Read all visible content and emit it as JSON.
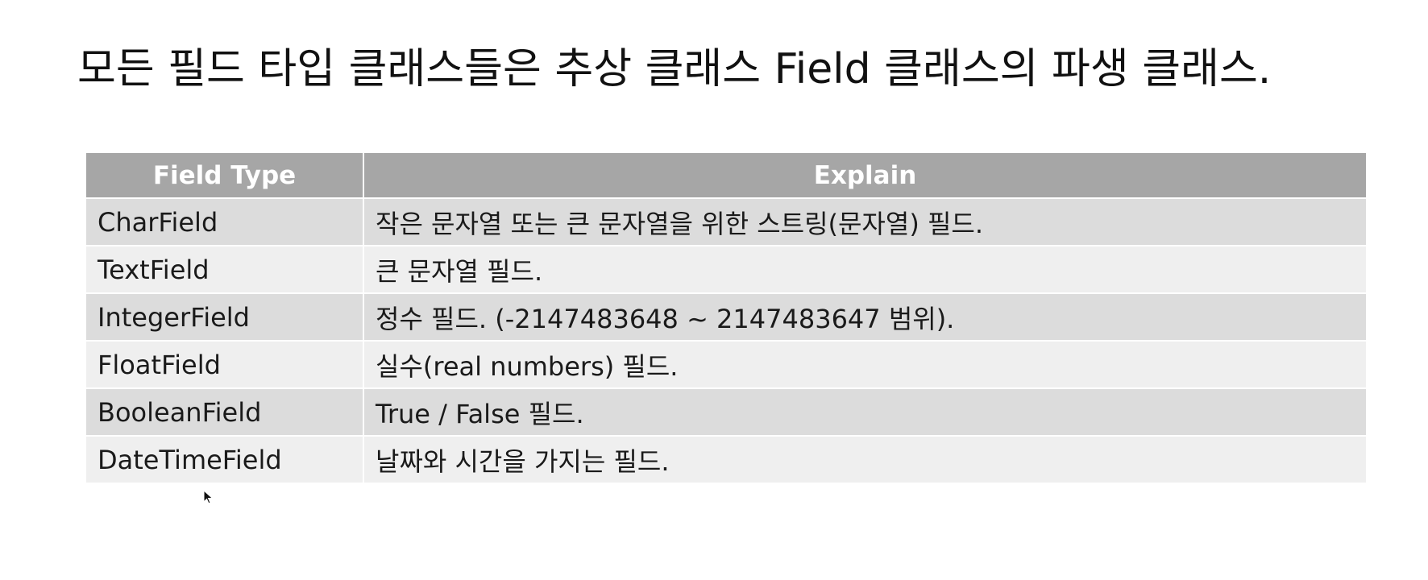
{
  "title": "모든 필드 타입 클래스들은 추상 클래스 Field 클래스의 파생 클래스.",
  "table": {
    "headers": [
      "Field Type",
      "Explain"
    ],
    "rows": [
      {
        "type": "CharField",
        "explain": "작은 문자열 또는 큰 문자열을 위한 스트링(문자열) 필드."
      },
      {
        "type": "TextField",
        "explain": "큰 문자열 필드."
      },
      {
        "type": "IntegerField",
        "explain": "정수 필드. (-2147483648 ~ 2147483647 범위)."
      },
      {
        "type": "FloatField",
        "explain": "실수(real numbers) 필드."
      },
      {
        "type": "BooleanField",
        "explain": "True / False 필드."
      },
      {
        "type": "DateTimeField",
        "explain": "날짜와 시간을 가지는 필드."
      }
    ]
  },
  "colors": {
    "header_bg": "#a6a6a6",
    "row_dark": "#dcdcdc",
    "row_light": "#efefef"
  },
  "icons": {
    "cursor": "mouse-pointer-icon"
  }
}
